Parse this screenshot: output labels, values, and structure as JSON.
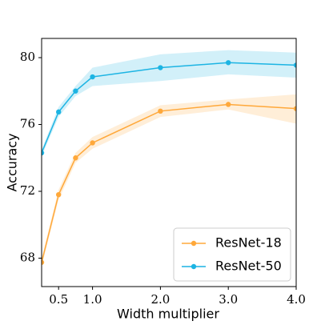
{
  "chart_data": {
    "type": "line",
    "x_label": "Width multiplier",
    "y_label": "Accuracy",
    "x": [
      0.25,
      0.5,
      0.75,
      1.0,
      2.0,
      3.0,
      4.0
    ],
    "series": [
      {
        "name": "ResNet-18",
        "color": "#ffa83a",
        "values": [
          67.75,
          71.8,
          74.0,
          74.9,
          76.8,
          77.2,
          76.95
        ],
        "lower": [
          67.5,
          71.5,
          73.7,
          74.55,
          76.45,
          76.9,
          76.05
        ],
        "upper": [
          68.0,
          72.1,
          74.3,
          75.25,
          77.15,
          77.5,
          77.8
        ]
      },
      {
        "name": "ResNet-50",
        "color": "#1cb4e3",
        "values": [
          74.3,
          76.75,
          78.0,
          78.85,
          79.4,
          79.7,
          79.55
        ],
        "lower": [
          74.1,
          76.45,
          77.7,
          78.3,
          78.6,
          79.0,
          78.8
        ],
        "upper": [
          74.5,
          77.05,
          78.3,
          79.4,
          80.2,
          80.45,
          80.3
        ]
      }
    ],
    "xlim": [
      0.25,
      4.0
    ],
    "ylim": [
      66.3,
      81.15
    ],
    "xticks": [
      0.5,
      {
        "value": 1.0,
        "label": "1.0"
      },
      {
        "value": 2.0,
        "label": "2.0"
      },
      {
        "value": 3.0,
        "label": "3.0"
      },
      {
        "value": 4.0,
        "label": "4.0"
      }
    ],
    "yticks": [
      68,
      72,
      76,
      80
    ],
    "grid": false,
    "legend": "lower right"
  }
}
